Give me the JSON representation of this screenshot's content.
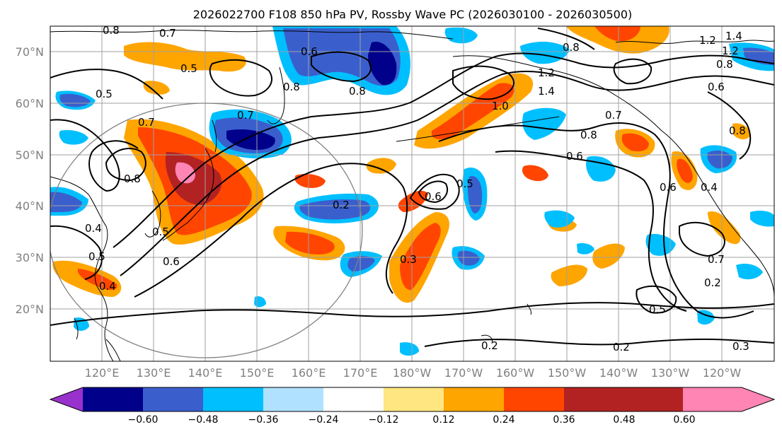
{
  "title": "2026022700 F108 850 hPa PV, Rossby Wave PC (2026030100 - 2026030500)",
  "lat_labels": [
    "70°N",
    "60°N",
    "50°N",
    "40°N",
    "30°N",
    "20°N"
  ],
  "lon_labels": [
    "120°E",
    "130°E",
    "140°E",
    "150°E",
    "160°E",
    "170°E",
    "180°W",
    "170°W",
    "160°W",
    "150°W",
    "140°W",
    "130°W",
    "120°W"
  ],
  "colorbar": {
    "tick_labels": [
      "−0.60",
      "−0.48",
      "−0.36",
      "−0.24",
      "−0.12",
      "0.12",
      "0.24",
      "0.36",
      "0.48",
      "0.60"
    ],
    "colors": [
      "#9932cc",
      "#00008b",
      "#3a5fcd",
      "#00bfff",
      "#b0e2ff",
      "#ffffff",
      "#ffe680",
      "#ffa500",
      "#ff4500",
      "#b22222",
      "#ff85b5"
    ]
  },
  "contour_labels": [
    {
      "text": "0.8",
      "id": "c1"
    },
    {
      "text": "0.7",
      "id": "c2"
    },
    {
      "text": "0.5",
      "id": "c3"
    },
    {
      "text": "0.5",
      "id": "c4"
    },
    {
      "text": "0.7",
      "id": "c5"
    },
    {
      "text": "0.7",
      "id": "c6"
    },
    {
      "text": "0.8",
      "id": "c7"
    },
    {
      "text": "0.8",
      "id": "c8"
    },
    {
      "text": "0.6",
      "id": "c9"
    },
    {
      "text": "0.8",
      "id": "c10"
    },
    {
      "text": "0.8",
      "id": "c11"
    },
    {
      "text": "1.2",
      "id": "c12"
    },
    {
      "text": "1.4",
      "id": "c13"
    },
    {
      "text": "1.0",
      "id": "c14"
    },
    {
      "text": "1.2",
      "id": "c15"
    },
    {
      "text": "1.4",
      "id": "c16"
    },
    {
      "text": "1.2",
      "id": "c17"
    },
    {
      "text": "0.8",
      "id": "c18"
    },
    {
      "text": "0.6",
      "id": "c19"
    },
    {
      "text": "0.8",
      "id": "c20"
    },
    {
      "text": "0.6",
      "id": "c21"
    },
    {
      "text": "0.7",
      "id": "c22"
    },
    {
      "text": "0.6",
      "id": "c23"
    },
    {
      "text": "0.5",
      "id": "c24"
    },
    {
      "text": "0.2",
      "id": "c25"
    },
    {
      "text": "0.3",
      "id": "c26"
    },
    {
      "text": "0.6",
      "id": "c27"
    },
    {
      "text": "0.4",
      "id": "c28"
    },
    {
      "text": "0.7",
      "id": "c29"
    },
    {
      "text": "0.2",
      "id": "c30"
    },
    {
      "text": "0.5",
      "id": "c31"
    },
    {
      "text": "0.2",
      "id": "c32"
    },
    {
      "text": "0.2",
      "id": "c33"
    },
    {
      "text": "0.3",
      "id": "c34"
    },
    {
      "text": "0.5",
      "id": "c35"
    },
    {
      "text": "0.4",
      "id": "c36"
    },
    {
      "text": "0.4",
      "id": "c37"
    },
    {
      "text": "0.5",
      "id": "c38"
    },
    {
      "text": "0.6",
      "id": "c39"
    },
    {
      "text": "0.8",
      "id": "c40"
    }
  ]
}
